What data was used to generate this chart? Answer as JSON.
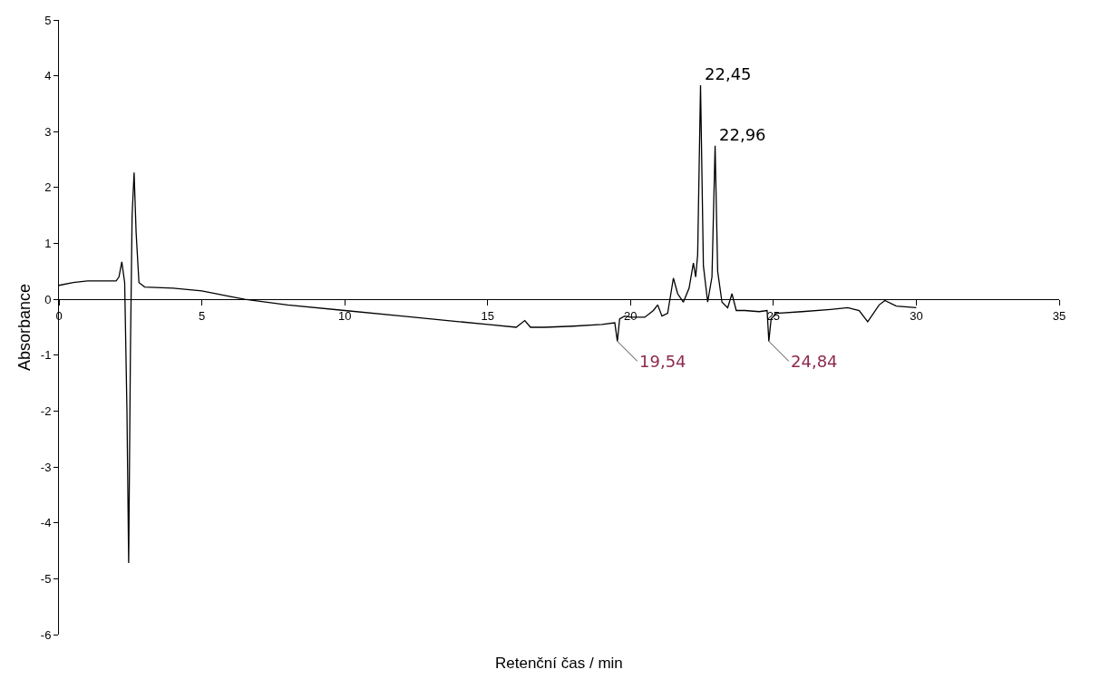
{
  "chart_data": {
    "type": "line",
    "xlabel": "Retenční čas / min",
    "ylabel": "Absorbance",
    "x": [
      0,
      0.5,
      1,
      1.5,
      2,
      2.1,
      2.2,
      2.3,
      2.38,
      2.44,
      2.5,
      2.56,
      2.63,
      2.7,
      2.8,
      3,
      4,
      5,
      6,
      6.5,
      8,
      10,
      12,
      14,
      15,
      16,
      16.3,
      16.5,
      17,
      18,
      19,
      19.45,
      19.54,
      19.62,
      19.8,
      20,
      20.5,
      20.8,
      20.95,
      21.1,
      21.3,
      21.5,
      21.65,
      21.85,
      22.05,
      22.2,
      22.28,
      22.35,
      22.45,
      22.55,
      22.7,
      22.85,
      22.96,
      23.05,
      23.2,
      23.4,
      23.55,
      23.7,
      24,
      24.5,
      24.78,
      24.84,
      24.92,
      25.1,
      26,
      27,
      27.6,
      28,
      28.3,
      28.7,
      28.9,
      29.3,
      30
    ],
    "series": [
      {
        "color": "#000000",
        "values": [
          0.25,
          0.3,
          0.33,
          0.33,
          0.33,
          0.4,
          0.67,
          0.3,
          -2,
          -4.72,
          -1,
          1.5,
          2.27,
          1.2,
          0.3,
          0.22,
          0.2,
          0.15,
          0.05,
          0,
          -0.1,
          -0.2,
          -0.3,
          -0.4,
          -0.45,
          -0.5,
          -0.38,
          -0.5,
          -0.5,
          -0.48,
          -0.45,
          -0.42,
          -0.75,
          -0.35,
          -0.3,
          -0.32,
          -0.32,
          -0.2,
          -0.1,
          -0.3,
          -0.25,
          0.38,
          0.1,
          -0.05,
          0.2,
          0.65,
          0.4,
          0.8,
          3.83,
          0.6,
          -0.05,
          0.4,
          2.75,
          0.5,
          -0.05,
          -0.15,
          0.1,
          -0.2,
          -0.2,
          -0.22,
          -0.2,
          -0.75,
          -0.35,
          -0.25,
          -0.22,
          -0.18,
          -0.15,
          -0.2,
          -0.4,
          -0.1,
          -0.02,
          -0.12,
          -0.15
        ]
      }
    ],
    "xlim": [
      0,
      35
    ],
    "xticks": [
      0,
      5,
      10,
      15,
      20,
      25,
      30,
      35
    ],
    "ylim": [
      -6,
      5
    ],
    "yticks": [
      -6,
      -5,
      -4,
      -3,
      -2,
      -1,
      0,
      1,
      2,
      3,
      4,
      5
    ],
    "grid": false,
    "marker": "none",
    "line_style": "solid",
    "annotations": [
      {
        "text": "22,45",
        "x": 22.45,
        "y": 3.83
      },
      {
        "text": "22,96",
        "x": 22.96,
        "y": 2.75
      },
      {
        "text": "19,54",
        "x": 19.54,
        "y": -0.75
      },
      {
        "text": "24,84",
        "x": 24.84,
        "y": -0.75
      }
    ]
  }
}
